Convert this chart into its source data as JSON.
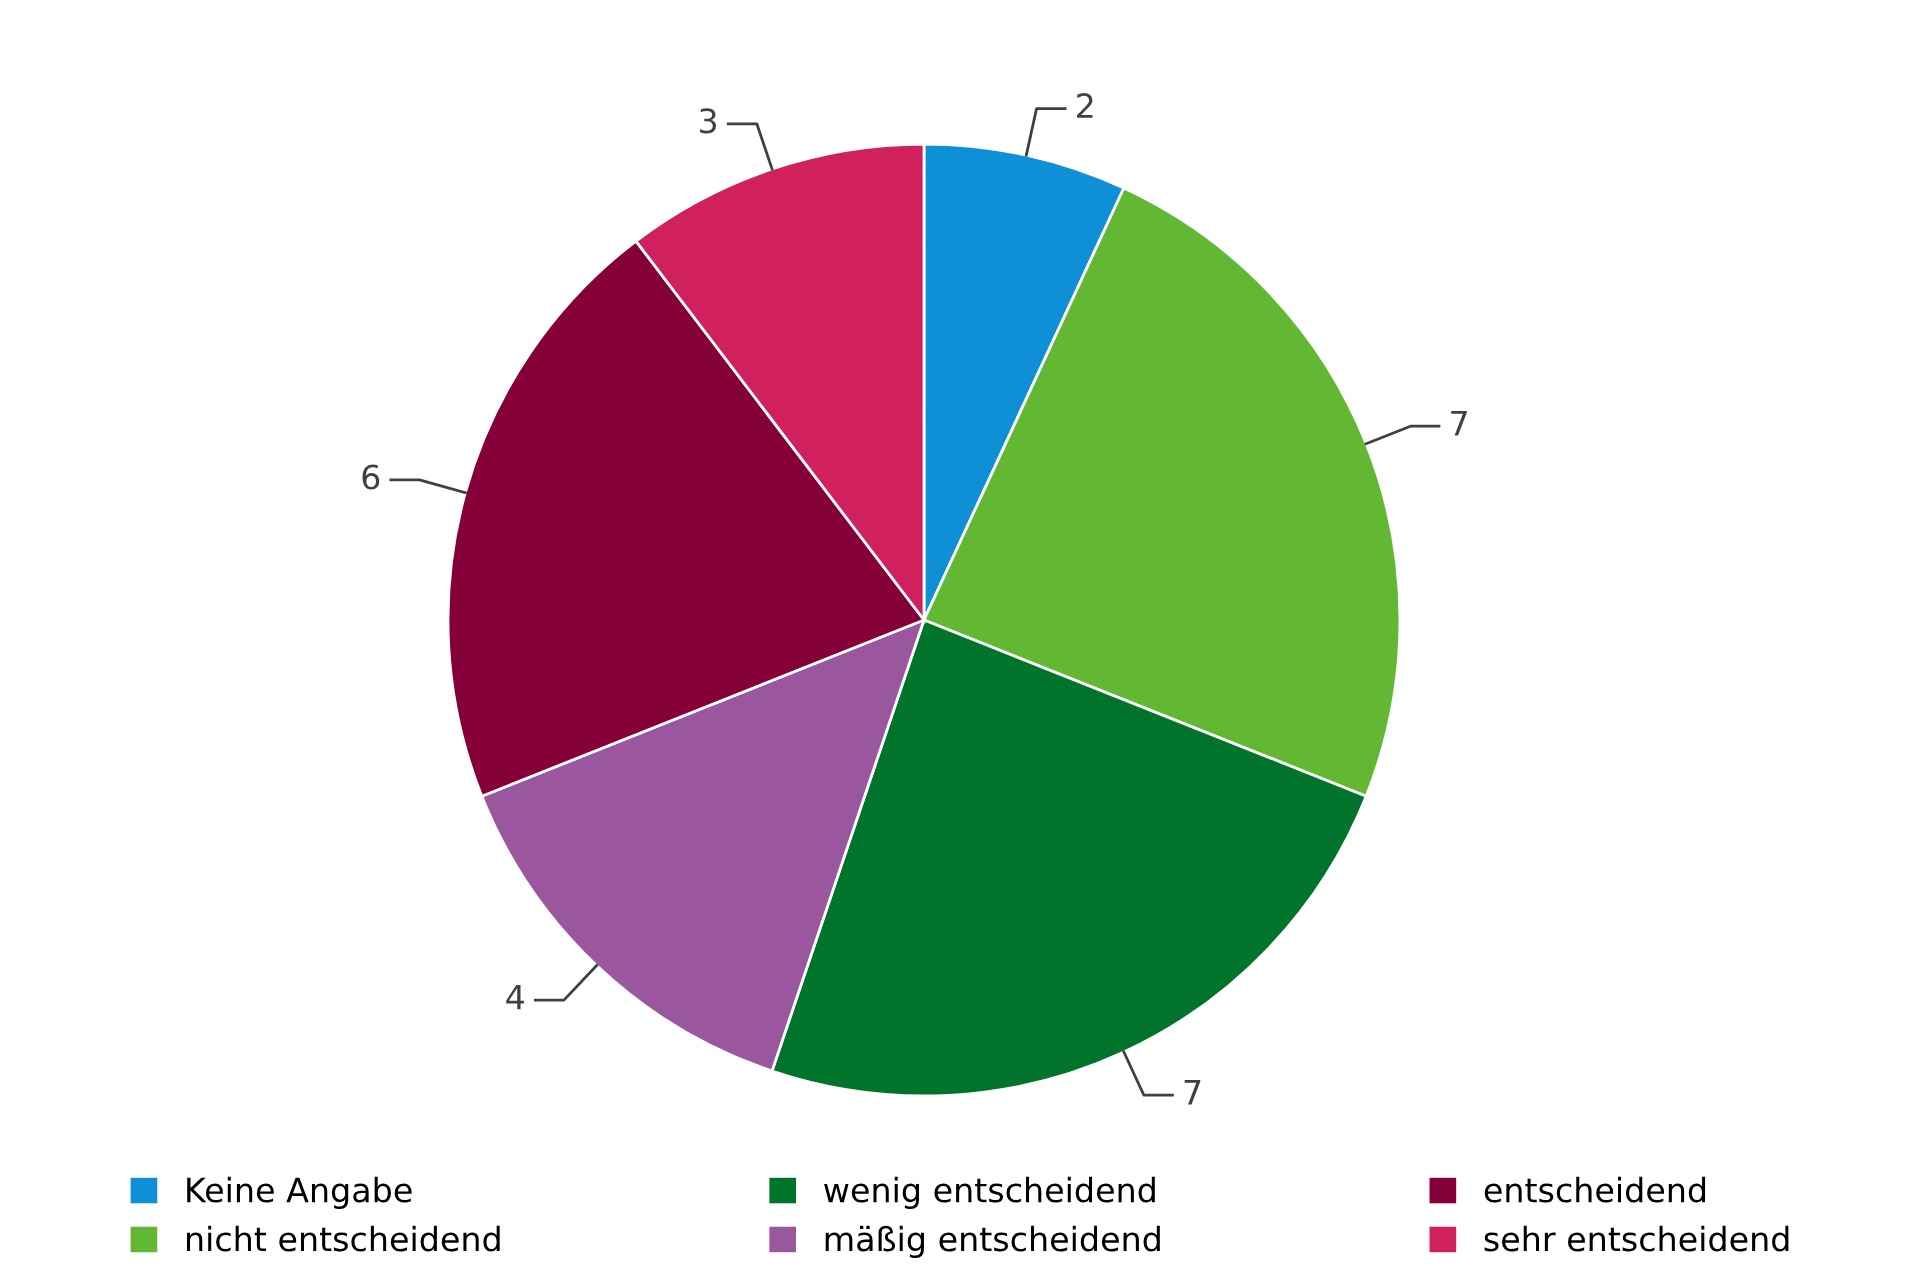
{
  "chart_data": {
    "type": "pie",
    "categories": [
      "Keine Angabe",
      "nicht entscheidend",
      "wenig entscheidend",
      "mäßig entscheidend",
      "entscheidend",
      "sehr entscheidend"
    ],
    "values": [
      2,
      7,
      7,
      4,
      6,
      3
    ],
    "colors": [
      "#0e8fd6",
      "#62b832",
      "#00742a",
      "#9b579d",
      "#850038",
      "#d0215e"
    ],
    "data_labels": true,
    "legend": "bottom"
  }
}
